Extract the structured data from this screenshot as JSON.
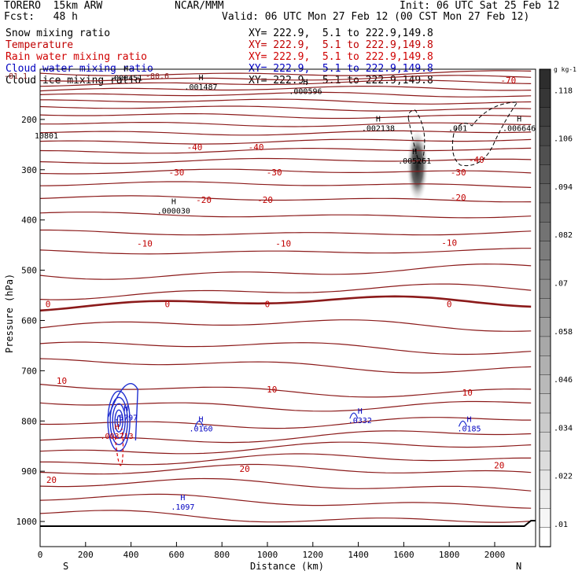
{
  "header": {
    "model": "TORERO  15km ARW",
    "org": "NCAR/MMM",
    "init": "Init: 06 UTC Sat 25 Feb 12",
    "fcst": "Fcst:   48 h",
    "valid": "Valid: 06 UTC Mon 27 Feb 12 (00 CST Mon 27 Feb 12)"
  },
  "fields": [
    {
      "name": "Snow mixing ratio",
      "xy": "XY= 222.9,  5.1 to 222.9,149.8",
      "color": "#000000"
    },
    {
      "name": "Temperature",
      "xy": "XY= 222.9,  5.1 to 222.9,149.8",
      "color": "#c00000"
    },
    {
      "name": "Rain water mixing ratio",
      "xy": "XY= 222.9,  5.1 to 222.9,149.8",
      "color": "#d00000"
    },
    {
      "name": "Cloud water mixing ratio",
      "xy": "XY= 222.9,  5.1 to 222.9,149.8",
      "color": "#0000c0"
    },
    {
      "name": "Cloud ice mixing ratio",
      "xy": "XY= 222.9,  5.1 to 222.9,149.8",
      "color": "#000000"
    }
  ],
  "chart_data": {
    "type": "cross-section",
    "xlabel": "Distance (km)",
    "ylabel": "Pressure (hPa)",
    "xlim": [
      0,
      2180
    ],
    "ylim": [
      1050,
      100
    ],
    "x_ticks": [
      0,
      200,
      400,
      600,
      800,
      1000,
      1200,
      1400,
      1600,
      1800,
      2000
    ],
    "y_ticks": [
      200,
      300,
      400,
      500,
      600,
      700,
      800,
      900,
      1000
    ],
    "x_end_labels": {
      "left": "S",
      "right": "N"
    },
    "colorbar": {
      "unit": "g kg-1",
      "ticks": [
        ".01",
        ".022",
        ".034",
        ".046",
        ".058",
        ".07",
        ".082",
        ".094",
        ".106",
        ".118"
      ]
    },
    "temperature_contours": [
      {
        "value": "-70",
        "p": 122,
        "label_km": 2060
      },
      {
        "value": "-40",
        "p": 255,
        "label_km": 680
      },
      {
        "value": "-40",
        "p": 255,
        "label_km": 950
      },
      {
        "value": "-40",
        "p": 280,
        "label_km": 1920
      },
      {
        "value": "-30",
        "p": 305,
        "label_km": 600
      },
      {
        "value": "-30",
        "p": 305,
        "label_km": 1030
      },
      {
        "value": "-30",
        "p": 305,
        "label_km": 1840
      },
      {
        "value": "-20",
        "p": 360,
        "label_km": 720
      },
      {
        "value": "-20",
        "p": 360,
        "label_km": 990
      },
      {
        "value": "-20",
        "p": 355,
        "label_km": 1840
      },
      {
        "value": "-10",
        "p": 447,
        "label_km": 460
      },
      {
        "value": "-10",
        "p": 447,
        "label_km": 1070
      },
      {
        "value": "-10",
        "p": 445,
        "label_km": 1800
      },
      {
        "value": "0",
        "p": 567,
        "label_km": 35
      },
      {
        "value": "0",
        "p": 567,
        "label_km": 560
      },
      {
        "value": "0",
        "p": 567,
        "label_km": 1000
      },
      {
        "value": "0",
        "p": 567,
        "label_km": 1800
      },
      {
        "value": "10",
        "p": 720,
        "label_km": 95
      },
      {
        "value": "10",
        "p": 737,
        "label_km": 1020
      },
      {
        "value": "10",
        "p": 743,
        "label_km": 1880
      },
      {
        "value": "20",
        "p": 917,
        "label_km": 50
      },
      {
        "value": "20",
        "p": 895,
        "label_km": 900
      },
      {
        "value": "20",
        "p": 888,
        "label_km": 2020
      }
    ],
    "maxima": [
      {
        "label": "H",
        "value": ".000451",
        "km": 350,
        "p": 110,
        "color": "#000000"
      },
      {
        "label": "H",
        "value": ".001487",
        "km": 680,
        "p": 128,
        "color": "#000000"
      },
      {
        "label": "H",
        "value": ".000596",
        "km": 1140,
        "p": 137,
        "color": "#000000"
      },
      {
        "label": "H",
        "value": ".002138",
        "km": 1460,
        "p": 210,
        "color": "#000000"
      },
      {
        "label": "H",
        "value": ".005261",
        "km": 1620,
        "p": 275,
        "color": "#000000"
      },
      {
        "label": "",
        "value": ".001",
        "km": 1810,
        "p": 210,
        "color": "#000000"
      },
      {
        "label": "H",
        "value": ".006646",
        "km": 2080,
        "p": 210,
        "color": "#000000"
      },
      {
        "label": "",
        "value": "10801",
        "km": 0,
        "p": 225,
        "color": "#000000"
      },
      {
        "label": "H",
        "value": ".000030",
        "km": 560,
        "p": 375,
        "color": "#000000"
      },
      {
        "label": "H",
        "value": ".5797",
        "km": 350,
        "p": 786,
        "color": "#0000c0"
      },
      {
        "label": "H",
        "value": ".003713",
        "km": 310,
        "p": 823,
        "color": "#c00000"
      },
      {
        "label": "H",
        "value": ".0160",
        "km": 680,
        "p": 808,
        "color": "#0000c0"
      },
      {
        "label": "H",
        "value": ".0332",
        "km": 1380,
        "p": 792,
        "color": "#0000c0"
      },
      {
        "label": "H",
        "value": ".0185",
        "km": 1860,
        "p": 808,
        "color": "#0000c0"
      },
      {
        "label": "H",
        "value": ".1097",
        "km": 600,
        "p": 964,
        "color": "#0000c0"
      }
    ],
    "top_labels": [
      "-80.6",
      "-81.1"
    ]
  }
}
